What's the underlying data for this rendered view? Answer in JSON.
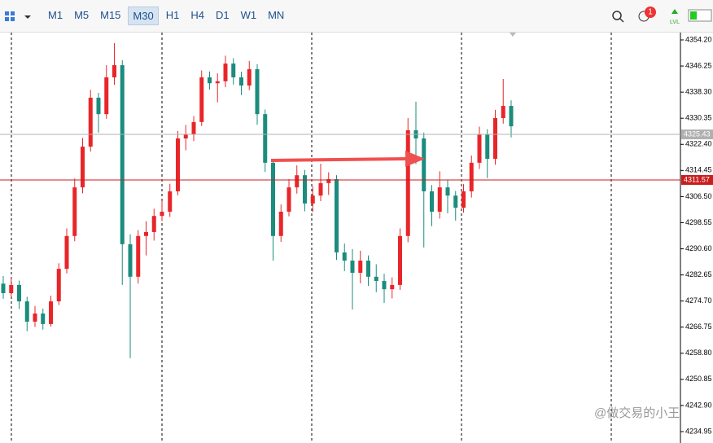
{
  "toolbar": {
    "timeframes": [
      "M1",
      "M5",
      "M15",
      "M30",
      "H1",
      "H4",
      "D1",
      "W1",
      "MN"
    ],
    "active": "M30",
    "badge": "1",
    "level": "LVL"
  },
  "chart": {
    "type": "candlestick",
    "yticks": [
      {
        "value": 4354.2,
        "label": "4354.20"
      },
      4346.25,
      {
        "value": 4338.3,
        "label": "4338.30"
      },
      4330.35,
      {
        "value": 4322.4,
        "label": "4322.40"
      },
      4314.45,
      {
        "value": 4306.5,
        "label": "4306.50"
      },
      4298.55,
      {
        "value": 4290.6,
        "label": "4290.60"
      },
      4282.65,
      {
        "value": 4274.7,
        "label": "4274.70"
      },
      4266.75,
      {
        "value": 4258.8,
        "label": "4258.80"
      },
      4250.85,
      {
        "value": 4242.9,
        "label": "4242.90"
      },
      4234.95
    ],
    "bid_line": 4325.43,
    "level_line": 4311.57,
    "up_color": "#e8262a",
    "down_color": "#1b8c7e",
    "candles": [
      [
        4280.0,
        4282.3,
        4275.4,
        4277.1
      ],
      [
        4277.1,
        4282.0,
        4275.8,
        4279.6
      ],
      [
        4279.6,
        4280.9,
        4272.3,
        4274.6
      ],
      [
        4274.6,
        4276.0,
        4265.5,
        4268.4
      ],
      [
        4268.4,
        4273.2,
        4266.8,
        4270.9
      ],
      [
        4270.9,
        4272.4,
        4266.0,
        4267.7
      ],
      [
        4267.7,
        4276.3,
        4266.9,
        4274.6
      ],
      [
        4274.6,
        4286.2,
        4273.5,
        4284.5
      ],
      [
        4284.5,
        4296.8,
        4283.1,
        4294.5
      ],
      [
        4294.5,
        4312.0,
        4292.9,
        4309.3
      ],
      [
        4309.3,
        4324.3,
        4307.5,
        4321.7
      ],
      [
        4321.7,
        4339.0,
        4320.2,
        4336.6
      ],
      [
        4336.6,
        4338.1,
        4326.0,
        4331.6
      ],
      [
        4331.6,
        4346.5,
        4330.2,
        4342.8
      ],
      [
        4342.8,
        4353.2,
        4340.5,
        4346.5
      ],
      [
        4346.5,
        4348.0,
        4279.6,
        4292.0
      ],
      [
        4292.0,
        4295.0,
        4257.3,
        4282.1
      ],
      [
        4282.1,
        4296.3,
        4280.0,
        4294.5
      ],
      [
        4294.5,
        4299.0,
        4288.6,
        4295.7
      ],
      [
        4295.7,
        4302.8,
        4293.1,
        4300.6
      ],
      [
        4300.6,
        4305.2,
        4299.0,
        4301.9
      ],
      [
        4301.9,
        4310.4,
        4300.3,
        4308.1
      ],
      [
        4308.1,
        4326.5,
        4306.9,
        4324.2
      ],
      [
        4324.2,
        4328.3,
        4320.6,
        4325.4
      ],
      [
        4325.4,
        4331.0,
        4323.4,
        4329.2
      ],
      [
        4329.2,
        4344.9,
        4328.0,
        4342.8
      ],
      [
        4342.8,
        4344.6,
        4339.1,
        4341.0
      ],
      [
        4341.0,
        4344.0,
        4335.2,
        4341.6
      ],
      [
        4341.6,
        4349.4,
        4339.8,
        4347.0
      ],
      [
        4347.0,
        4348.6,
        4340.6,
        4342.8
      ],
      [
        4342.8,
        4344.5,
        4337.4,
        4340.3
      ],
      [
        4340.3,
        4347.8,
        4338.9,
        4345.3
      ],
      [
        4345.3,
        4346.8,
        4328.4,
        4331.6
      ],
      [
        4331.6,
        4333.0,
        4314.0,
        4316.8
      ],
      [
        4316.8,
        4318.0,
        4287.0,
        4294.5
      ],
      [
        4294.5,
        4304.1,
        4292.7,
        4301.9
      ],
      [
        4301.9,
        4311.8,
        4300.5,
        4309.3
      ],
      [
        4309.3,
        4316.0,
        4307.4,
        4313.0
      ],
      [
        4313.0,
        4314.6,
        4302.0,
        4304.4
      ],
      [
        4304.4,
        4309.6,
        4301.8,
        4306.8
      ],
      [
        4306.8,
        4316.5,
        4305.1,
        4310.6
      ],
      [
        4310.6,
        4313.9,
        4307.0,
        4311.8
      ],
      [
        4311.8,
        4313.0,
        4287.2,
        4289.5
      ],
      [
        4289.5,
        4292.2,
        4283.8,
        4287.0
      ],
      [
        4287.0,
        4290.5,
        4272.1,
        4283.3
      ],
      [
        4283.3,
        4290.0,
        4280.1,
        4287.0
      ],
      [
        4287.0,
        4288.6,
        4279.3,
        4282.1
      ],
      [
        4282.1,
        4285.9,
        4277.4,
        4280.8
      ],
      [
        4280.8,
        4283.0,
        4274.1,
        4278.3
      ],
      [
        4278.3,
        4281.9,
        4275.5,
        4279.6
      ],
      [
        4279.6,
        4296.8,
        4278.1,
        4294.5
      ],
      [
        4294.5,
        4330.4,
        4292.6,
        4326.7
      ],
      [
        4326.7,
        4335.4,
        4316.4,
        4324.2
      ],
      [
        4324.2,
        4326.0,
        4291.0,
        4308.1
      ],
      [
        4308.1,
        4310.0,
        4297.5,
        4301.9
      ],
      [
        4301.9,
        4314.2,
        4299.8,
        4309.3
      ],
      [
        4309.3,
        4311.6,
        4301.4,
        4306.8
      ],
      [
        4306.8,
        4308.2,
        4299.2,
        4303.1
      ],
      [
        4303.1,
        4310.3,
        4301.6,
        4308.1
      ],
      [
        4308.1,
        4319.0,
        4306.2,
        4316.8
      ],
      [
        4316.8,
        4327.8,
        4314.9,
        4325.4
      ],
      [
        4325.4,
        4327.0,
        4312.1,
        4318.0
      ],
      [
        4318.0,
        4332.9,
        4316.2,
        4330.4
      ],
      [
        4330.4,
        4342.3,
        4328.7,
        4334.1
      ],
      [
        4334.1,
        4335.8,
        4324.5,
        4327.9
      ]
    ]
  },
  "watermark": "@做交易的小王"
}
